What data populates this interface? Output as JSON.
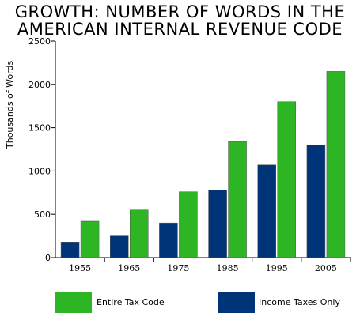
{
  "title_lines": [
    "GROWTH: NUMBER OF WORDS IN THE",
    "AMERICAN INTERNAL REVENUE CODE"
  ],
  "colors": {
    "entire": "#2db524",
    "income": "#003478",
    "axis": "#000000"
  },
  "chart_data": {
    "type": "bar",
    "title": "GROWTH: NUMBER OF WORDS IN THE AMERICAN INTERNAL REVENUE CODE",
    "xlabel": "",
    "ylabel": "Thousands of Words",
    "ylim": [
      0,
      2500
    ],
    "yticks": [
      0,
      500,
      1000,
      1500,
      2000,
      2500
    ],
    "categories": [
      "1955",
      "1965",
      "1975",
      "1985",
      "1995",
      "2005"
    ],
    "series": [
      {
        "name": "Income Taxes Only",
        "values": [
          180,
          250,
          400,
          780,
          1070,
          1300
        ]
      },
      {
        "name": "Entire Tax Code",
        "values": [
          420,
          550,
          760,
          1340,
          1800,
          2150
        ]
      }
    ],
    "grid": false,
    "legend_position": "bottom"
  },
  "legend": [
    {
      "label": "Entire Tax Code"
    },
    {
      "label": "Income Taxes Only"
    }
  ]
}
